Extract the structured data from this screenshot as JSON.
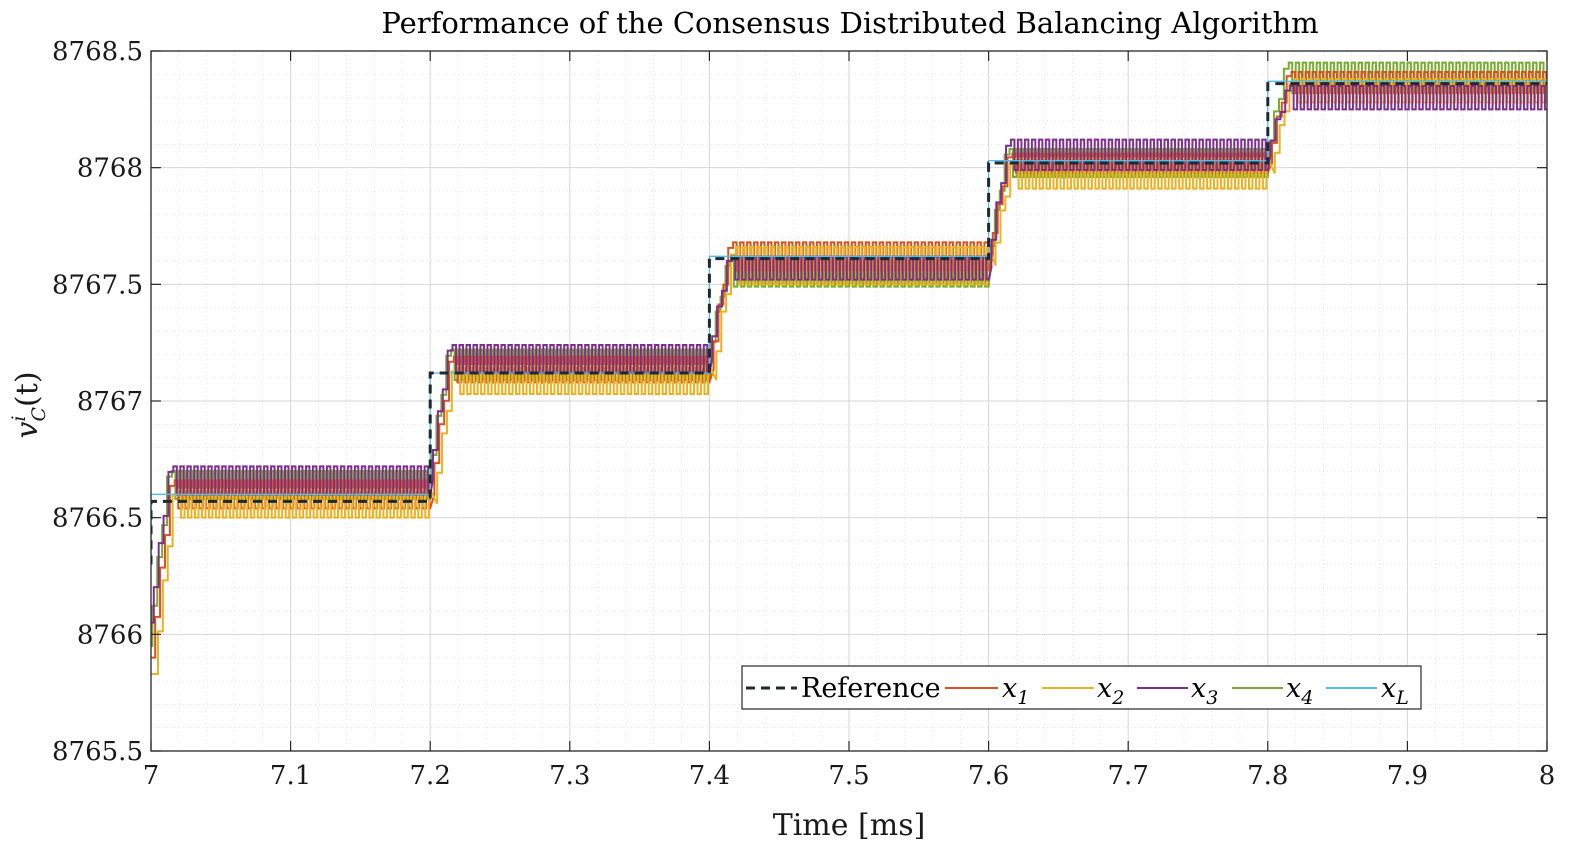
{
  "chart_data": {
    "type": "line",
    "title": "Performance of the Consensus Distributed Balancing Algorithm",
    "xlabel": "Time [ms]",
    "ylabel_base": "v",
    "ylabel_sup": "i",
    "ylabel_sub": "C",
    "ylabel_arg": "(t)",
    "xlim": [
      7,
      8
    ],
    "ylim": [
      8765.5,
      8768.5
    ],
    "xticks": [
      7,
      7.1,
      7.2,
      7.3,
      7.4,
      7.5,
      7.6,
      7.7,
      7.8,
      7.9,
      8
    ],
    "xtick_labels": [
      "7",
      "7.1",
      "7.2",
      "7.3",
      "7.4",
      "7.5",
      "7.6",
      "7.7",
      "7.8",
      "7.9",
      "8"
    ],
    "yticks": [
      8765.5,
      8766,
      8766.5,
      8767,
      8767.5,
      8768,
      8768.5
    ],
    "ytick_labels": [
      "8765.5",
      "8766",
      "8766.5",
      "8767",
      "8767.5",
      "8768",
      "8768.5"
    ],
    "grid": true,
    "legend_position": "bottom-right",
    "step_times": [
      7,
      7.2,
      7.4,
      7.6,
      7.8
    ],
    "reference_levels": [
      8766.57,
      8767.12,
      8767.61,
      8768.02,
      8768.36
    ],
    "oscillation_period": 0.005,
    "series": [
      {
        "name": "Reference",
        "label": "Reference",
        "sub": "",
        "color": "#1c2a33",
        "dashed": true,
        "initial": 8766.3,
        "lag": 0.0,
        "bands": [
          [
            8766.57,
            8766.57
          ],
          [
            8767.12,
            8767.12
          ],
          [
            8767.61,
            8767.61
          ],
          [
            8768.02,
            8768.02
          ],
          [
            8768.36,
            8768.36
          ]
        ]
      },
      {
        "name": "x1",
        "label": "x",
        "sub": "1",
        "color": "#D95319",
        "dashed": false,
        "initial": 8765.9,
        "lag": 0.003,
        "bands": [
          [
            8766.54,
            8766.66
          ],
          [
            8767.08,
            8767.19
          ],
          [
            8767.56,
            8767.68
          ],
          [
            8767.98,
            8768.06
          ],
          [
            8768.32,
            8768.41
          ]
        ]
      },
      {
        "name": "x2",
        "label": "x",
        "sub": "2",
        "color": "#EDB120",
        "dashed": false,
        "initial": 8765.83,
        "lag": 0.005,
        "bands": [
          [
            8766.5,
            8766.62
          ],
          [
            8767.03,
            8767.15
          ],
          [
            8767.5,
            8767.66
          ],
          [
            8767.91,
            8768.04
          ],
          [
            8768.28,
            8768.38
          ]
        ]
      },
      {
        "name": "x3",
        "label": "x",
        "sub": "3",
        "color": "#7E2F8E",
        "dashed": false,
        "initial": 8766.05,
        "lag": 0.002,
        "bands": [
          [
            8766.6,
            8766.72
          ],
          [
            8767.12,
            8767.24
          ],
          [
            8767.52,
            8767.62
          ],
          [
            8767.99,
            8768.12
          ],
          [
            8768.25,
            8768.35
          ]
        ]
      },
      {
        "name": "x4",
        "label": "x",
        "sub": "4",
        "color": "#77AC30",
        "dashed": false,
        "initial": 8765.95,
        "lag": 0.001,
        "bands": [
          [
            8766.58,
            8766.7
          ],
          [
            8767.09,
            8767.22
          ],
          [
            8767.49,
            8767.6
          ],
          [
            8767.96,
            8768.08
          ],
          [
            8768.32,
            8768.45
          ]
        ]
      },
      {
        "name": "xL",
        "label": "x",
        "sub": "L",
        "color": "#4DBEEE",
        "dashed": false,
        "initial": 8766.3,
        "lag": 0.0,
        "bands": [
          [
            8766.6,
            8766.6
          ],
          [
            8767.12,
            8767.12
          ],
          [
            8767.62,
            8767.62
          ],
          [
            8768.03,
            8768.03
          ],
          [
            8768.37,
            8768.37
          ]
        ]
      }
    ]
  }
}
